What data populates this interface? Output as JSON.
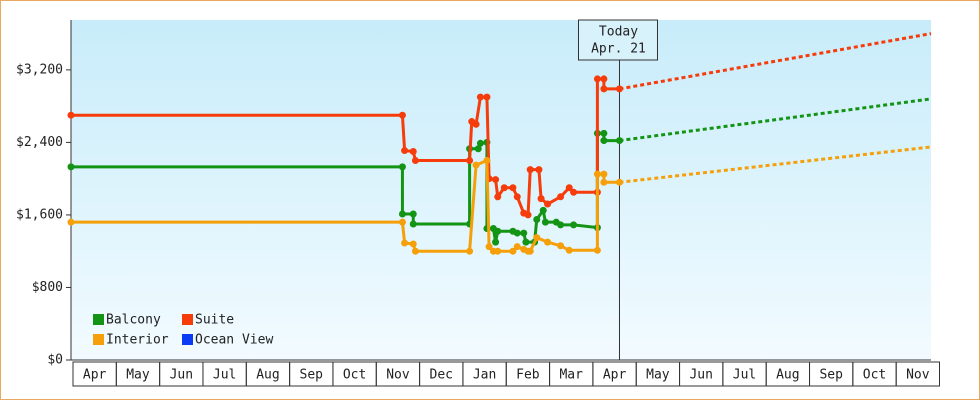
{
  "chart_data": {
    "type": "step-line",
    "ylim": [
      0,
      3750
    ],
    "yticks": [
      {
        "value": 0,
        "label": "$0"
      },
      {
        "value": 800,
        "label": "$800"
      },
      {
        "value": 1600,
        "label": "$1,600"
      },
      {
        "value": 2400,
        "label": "$2,400"
      },
      {
        "value": 3200,
        "label": "$3,200"
      }
    ],
    "xlim": [
      0,
      19.85
    ],
    "xticks": [
      {
        "value": 0.5,
        "label": "Apr"
      },
      {
        "value": 1.5,
        "label": "May"
      },
      {
        "value": 2.5,
        "label": "Jun"
      },
      {
        "value": 3.5,
        "label": "Jul"
      },
      {
        "value": 4.5,
        "label": "Aug"
      },
      {
        "value": 5.5,
        "label": "Sep"
      },
      {
        "value": 6.5,
        "label": "Oct"
      },
      {
        "value": 7.5,
        "label": "Nov"
      },
      {
        "value": 8.5,
        "label": "Dec"
      },
      {
        "value": 9.5,
        "label": "Jan"
      },
      {
        "value": 10.5,
        "label": "Feb"
      },
      {
        "value": 11.5,
        "label": "Mar"
      },
      {
        "value": 12.5,
        "label": "Apr"
      },
      {
        "value": 13.5,
        "label": "May"
      },
      {
        "value": 14.5,
        "label": "Jun"
      },
      {
        "value": 15.5,
        "label": "Jul"
      },
      {
        "value": 16.5,
        "label": "Aug"
      },
      {
        "value": 17.5,
        "label": "Sep"
      },
      {
        "value": 18.5,
        "label": "Oct"
      },
      {
        "value": 19.5,
        "label": "Nov"
      }
    ],
    "annotation": {
      "x": 12.66,
      "text": [
        "Today",
        "Apr. 21"
      ]
    },
    "series": [
      {
        "name": "Balcony",
        "color": "#149414",
        "x": [
          0,
          7.65,
          7.65,
          7.9,
          7.9,
          9.2,
          9.2,
          9.4,
          9.45,
          9.6,
          9.6,
          9.75,
          9.8,
          9.85,
          10.2,
          10.3,
          10.45,
          10.5,
          10.7,
          10.75,
          10.9,
          10.95,
          11.2,
          11.3,
          11.6,
          12.15,
          12.15,
          12.3,
          12.3,
          12.66
        ],
        "values": [
          2130,
          2130,
          1610,
          1610,
          1500,
          1500,
          2330,
          2330,
          2390,
          2400,
          1450,
          1450,
          1300,
          1420,
          1420,
          1400,
          1400,
          1300,
          1300,
          1550,
          1650,
          1520,
          1520,
          1490,
          1490,
          1460,
          2500,
          2500,
          2420,
          2420
        ],
        "projection": {
          "x": [
            12.66,
            19.85
          ],
          "values": [
            2420,
            2880
          ]
        }
      },
      {
        "name": "Suite",
        "color": "#f53c0a",
        "x": [
          0,
          7.65,
          7.7,
          7.9,
          7.95,
          9.2,
          9.25,
          9.35,
          9.45,
          9.6,
          9.65,
          9.8,
          9.85,
          10.0,
          10.2,
          10.3,
          10.45,
          10.55,
          10.6,
          10.8,
          10.85,
          11.0,
          11.3,
          11.5,
          11.6,
          12.15,
          12.15,
          12.3,
          12.3,
          12.66
        ],
        "values": [
          2700,
          2700,
          2310,
          2300,
          2200,
          2200,
          2630,
          2600,
          2900,
          2900,
          2000,
          1990,
          1800,
          1900,
          1900,
          1800,
          1620,
          1600,
          2100,
          2100,
          1780,
          1720,
          1800,
          1900,
          1850,
          1850,
          3100,
          3100,
          2990,
          2990
        ],
        "projection": {
          "x": [
            12.66,
            19.85
          ],
          "values": [
            2990,
            3600
          ]
        }
      },
      {
        "name": "Interior",
        "color": "#f5a00a",
        "x": [
          0,
          7.65,
          7.7,
          7.9,
          7.95,
          9.2,
          9.35,
          9.6,
          9.65,
          9.75,
          9.85,
          10.2,
          10.3,
          10.45,
          10.55,
          10.6,
          10.75,
          11.0,
          11.3,
          11.5,
          12.15,
          12.15,
          12.3,
          12.3,
          12.66
        ],
        "values": [
          1520,
          1520,
          1290,
          1280,
          1200,
          1200,
          2150,
          2200,
          1250,
          1200,
          1200,
          1200,
          1250,
          1220,
          1200,
          1200,
          1350,
          1300,
          1260,
          1210,
          1210,
          2050,
          2050,
          1960,
          1960
        ],
        "projection": {
          "x": [
            12.66,
            19.85
          ],
          "values": [
            1960,
            2350
          ]
        }
      },
      {
        "name": "Ocean View",
        "color": "#0a3cf5",
        "x": [],
        "values": []
      }
    ]
  }
}
